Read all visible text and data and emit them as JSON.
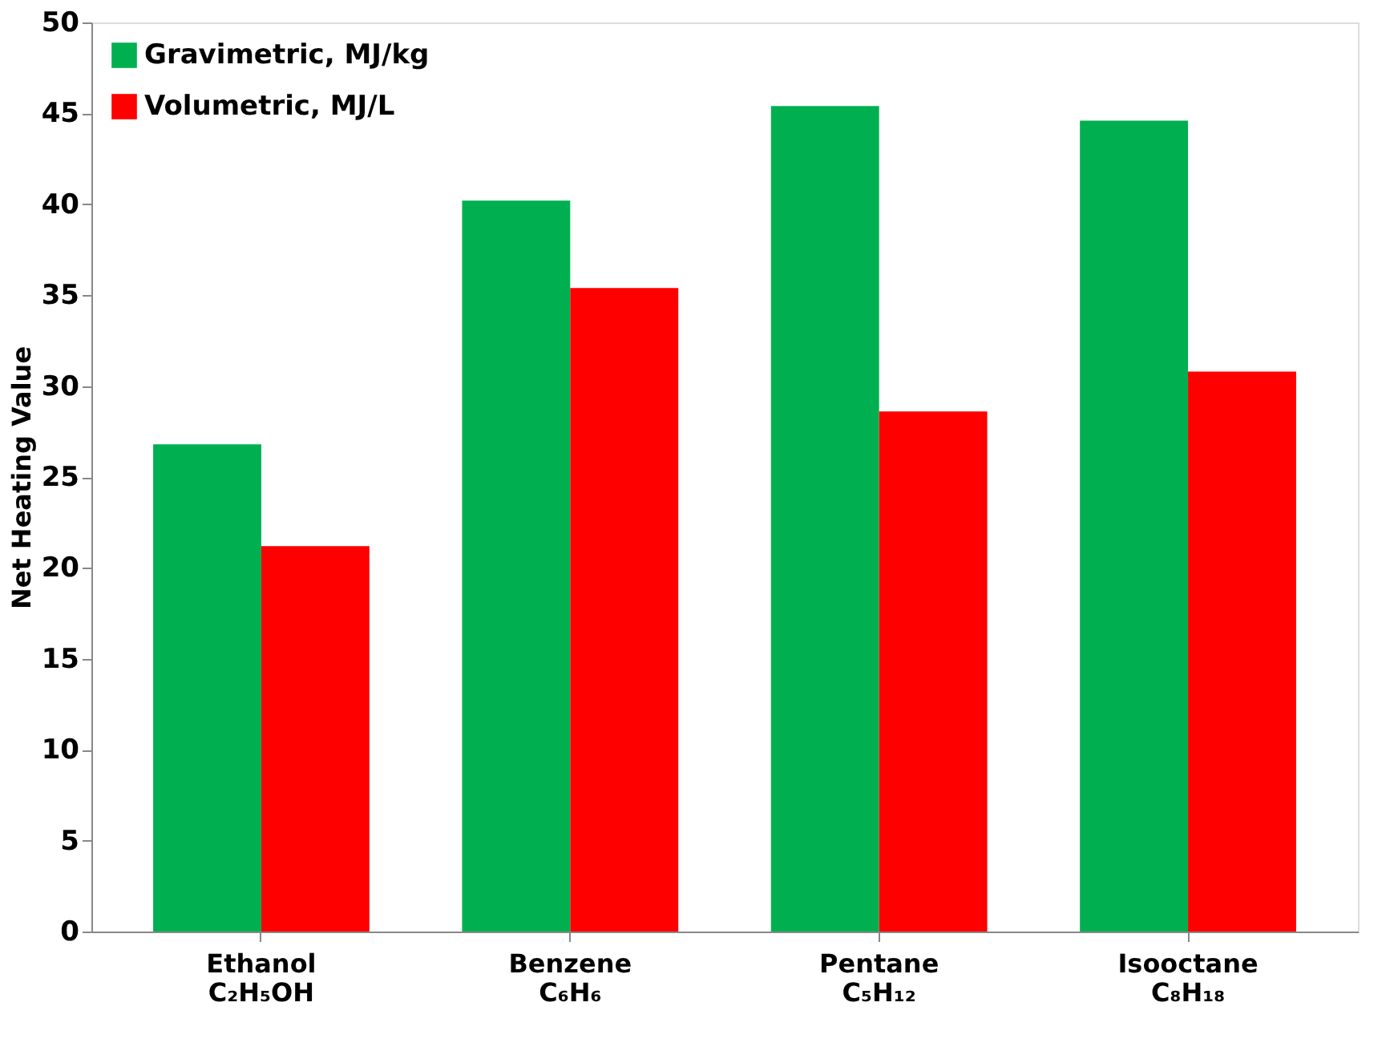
{
  "chart_data": {
    "type": "bar",
    "ylabel": "Net Heating Value",
    "categories": [
      "Ethanol\nC₂H₅OH",
      "Benzene\nC₆H₆",
      "Pentane\nC₅H₁₂",
      "Isooctane\nC₈H₁₈"
    ],
    "series": [
      {
        "name": "Gravimetric, MJ/kg",
        "color": "#00b050",
        "values": [
          26.8,
          40.2,
          45.4,
          44.6
        ]
      },
      {
        "name": "Volumetric, MJ/L",
        "color": "#ff0000",
        "values": [
          21.2,
          35.4,
          28.6,
          30.8
        ]
      }
    ],
    "ylim": [
      0,
      50
    ],
    "yticks": [
      0,
      5,
      10,
      15,
      20,
      25,
      30,
      35,
      40,
      45,
      50
    ],
    "grid": false,
    "legend": "top left"
  }
}
